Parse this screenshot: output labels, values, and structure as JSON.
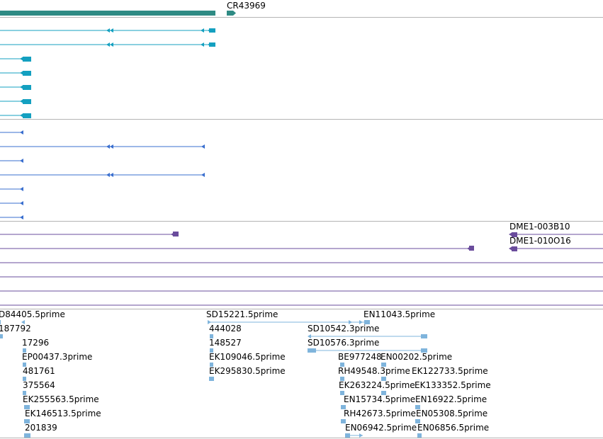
{
  "colors": {
    "noncoding_gene": "#2e8b84",
    "transcript_cyan": "#14a0c0",
    "transcript_blue": "#3a6fcf",
    "cdna_purple": "#6a4c9c",
    "est_light": "#7fb4dc",
    "track_separator": "#b4b4b4"
  },
  "tracks": {
    "gene": {
      "label": "CR43969"
    },
    "cdna": {
      "labels": [
        "DME1-003B10",
        "DME1-010O16"
      ]
    },
    "est": {
      "labels": [
        "D84405.5prime",
        "187792",
        "17296",
        "EP00437.3prime",
        "481761",
        "375564",
        "EK255563.5prime",
        "EK146513.5prime",
        "201839",
        "SD15221.5prime",
        "444028",
        "148527",
        "EK109046.5prime",
        "EK295830.5prime",
        "EN11043.5prime",
        "SD10542.3prime",
        "SD10576.3prime",
        "BE977248",
        "EN00202.5prime",
        "RH49548.3prime",
        "EK122733.5prime",
        "EK263224.5prime",
        "EK133352.5prime",
        "EN15734.5prime",
        "EN16922.5prime",
        "RH42673.5prime",
        "EN05308.5prime",
        "EN06942.5prime",
        "EN06856.5prime"
      ]
    }
  }
}
